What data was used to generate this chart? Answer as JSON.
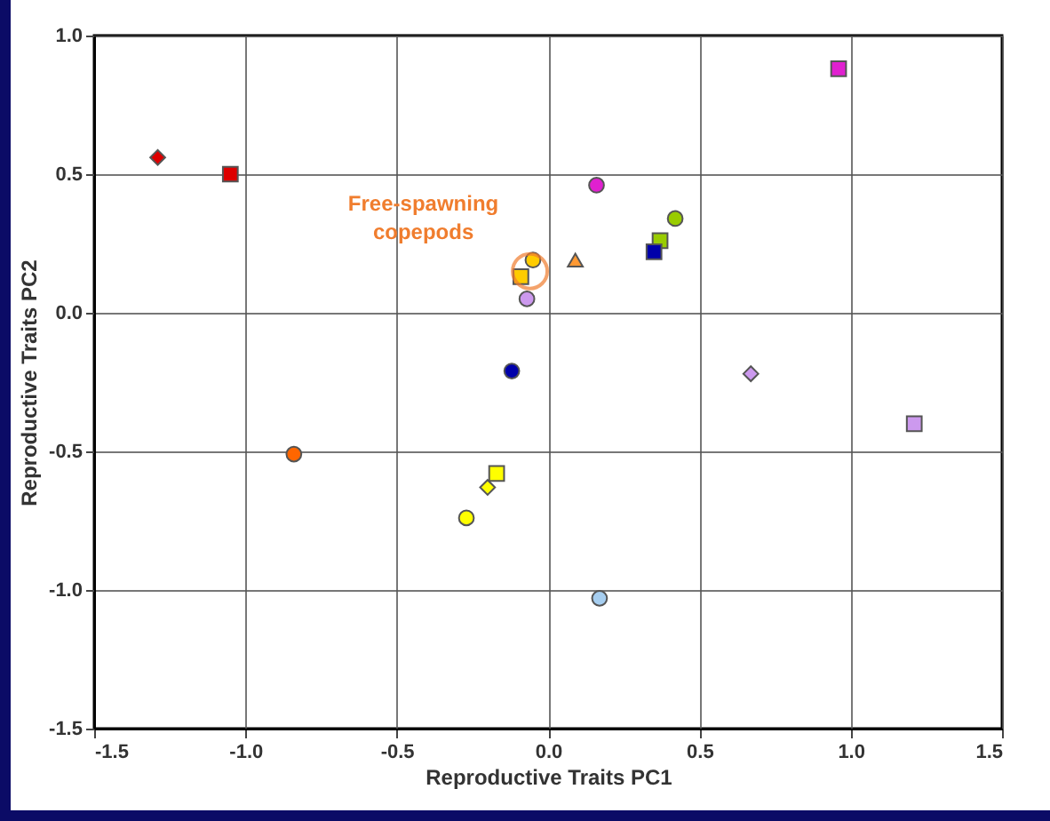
{
  "chart_data": {
    "type": "scatter",
    "xlabel": "Reproductive Traits PC1",
    "ylabel": "Reproductive Traits PC2",
    "xlim": [
      -1.5,
      1.5
    ],
    "ylim": [
      -1.5,
      1.0
    ],
    "xticks": [
      {
        "value": -1.5,
        "label": "-1.5"
      },
      {
        "value": -1,
        "label": "-1.0"
      },
      {
        "value": -0.5,
        "label": "-0.5"
      },
      {
        "value": 0,
        "label": "0.0"
      },
      {
        "value": 0.5,
        "label": "0.5"
      },
      {
        "value": 1,
        "label": "1.0"
      },
      {
        "value": 1.5,
        "label": "1.5"
      }
    ],
    "yticks": [
      {
        "value": -1.5,
        "label": "-1.5"
      },
      {
        "value": -1,
        "label": "-1.0"
      },
      {
        "value": -0.5,
        "label": "-0.5"
      },
      {
        "value": 0,
        "label": "0.0"
      },
      {
        "value": 0.5,
        "label": "0.5"
      },
      {
        "value": 1,
        "label": "1.0"
      }
    ],
    "grid": true,
    "legend": false,
    "annotations": [
      {
        "text": "Free-spawning copepods",
        "x": -0.06,
        "y": 0.15
      }
    ],
    "series": [
      {
        "color": "#dd0000",
        "marker": "diamond",
        "x": [
          -1.29
        ],
        "values": [
          0.56
        ]
      },
      {
        "color": "#dd0000",
        "marker": "square",
        "x": [
          -1.05
        ],
        "values": [
          0.5
        ]
      },
      {
        "color": "#e020d0",
        "marker": "square",
        "x": [
          0.96
        ],
        "values": [
          0.88
        ]
      },
      {
        "color": "#e020d0",
        "marker": "circle",
        "x": [
          0.16
        ],
        "values": [
          0.46
        ]
      },
      {
        "color": "#99cc00",
        "marker": "circle",
        "x": [
          0.42
        ],
        "values": [
          0.34
        ]
      },
      {
        "color": "#99cc00",
        "marker": "square",
        "x": [
          0.37
        ],
        "values": [
          0.26
        ]
      },
      {
        "color": "#0000aa",
        "marker": "square",
        "x": [
          0.35
        ],
        "values": [
          0.22
        ]
      },
      {
        "color": "#ff9933",
        "marker": "triangle",
        "x": [
          0.09
        ],
        "values": [
          0.19
        ]
      },
      {
        "color": "#ffcc00",
        "marker": "circle",
        "x": [
          -0.05
        ],
        "values": [
          0.19
        ]
      },
      {
        "color": "#ffcc00",
        "marker": "square",
        "x": [
          -0.09
        ],
        "values": [
          0.13
        ]
      },
      {
        "color": "#cc99ee",
        "marker": "circle",
        "x": [
          -0.07
        ],
        "values": [
          0.05
        ]
      },
      {
        "color": "#0000aa",
        "marker": "circle",
        "x": [
          -0.12
        ],
        "values": [
          -0.21
        ]
      },
      {
        "color": "#cc99ee",
        "marker": "diamond",
        "x": [
          0.67
        ],
        "values": [
          -0.22
        ]
      },
      {
        "color": "#cc99ee",
        "marker": "square",
        "x": [
          1.21
        ],
        "values": [
          -0.4
        ]
      },
      {
        "color": "#ff6600",
        "marker": "circle",
        "x": [
          -0.84
        ],
        "values": [
          -0.51
        ]
      },
      {
        "color": "#ffff00",
        "marker": "square",
        "x": [
          -0.17
        ],
        "values": [
          -0.58
        ]
      },
      {
        "color": "#ffff00",
        "marker": "diamond",
        "x": [
          -0.2
        ],
        "values": [
          -0.63
        ]
      },
      {
        "color": "#ffff00",
        "marker": "circle",
        "x": [
          -0.27
        ],
        "values": [
          -0.74
        ]
      },
      {
        "color": "#a6cef0",
        "marker": "circle",
        "x": [
          0.17
        ],
        "values": [
          -1.03
        ]
      }
    ]
  }
}
